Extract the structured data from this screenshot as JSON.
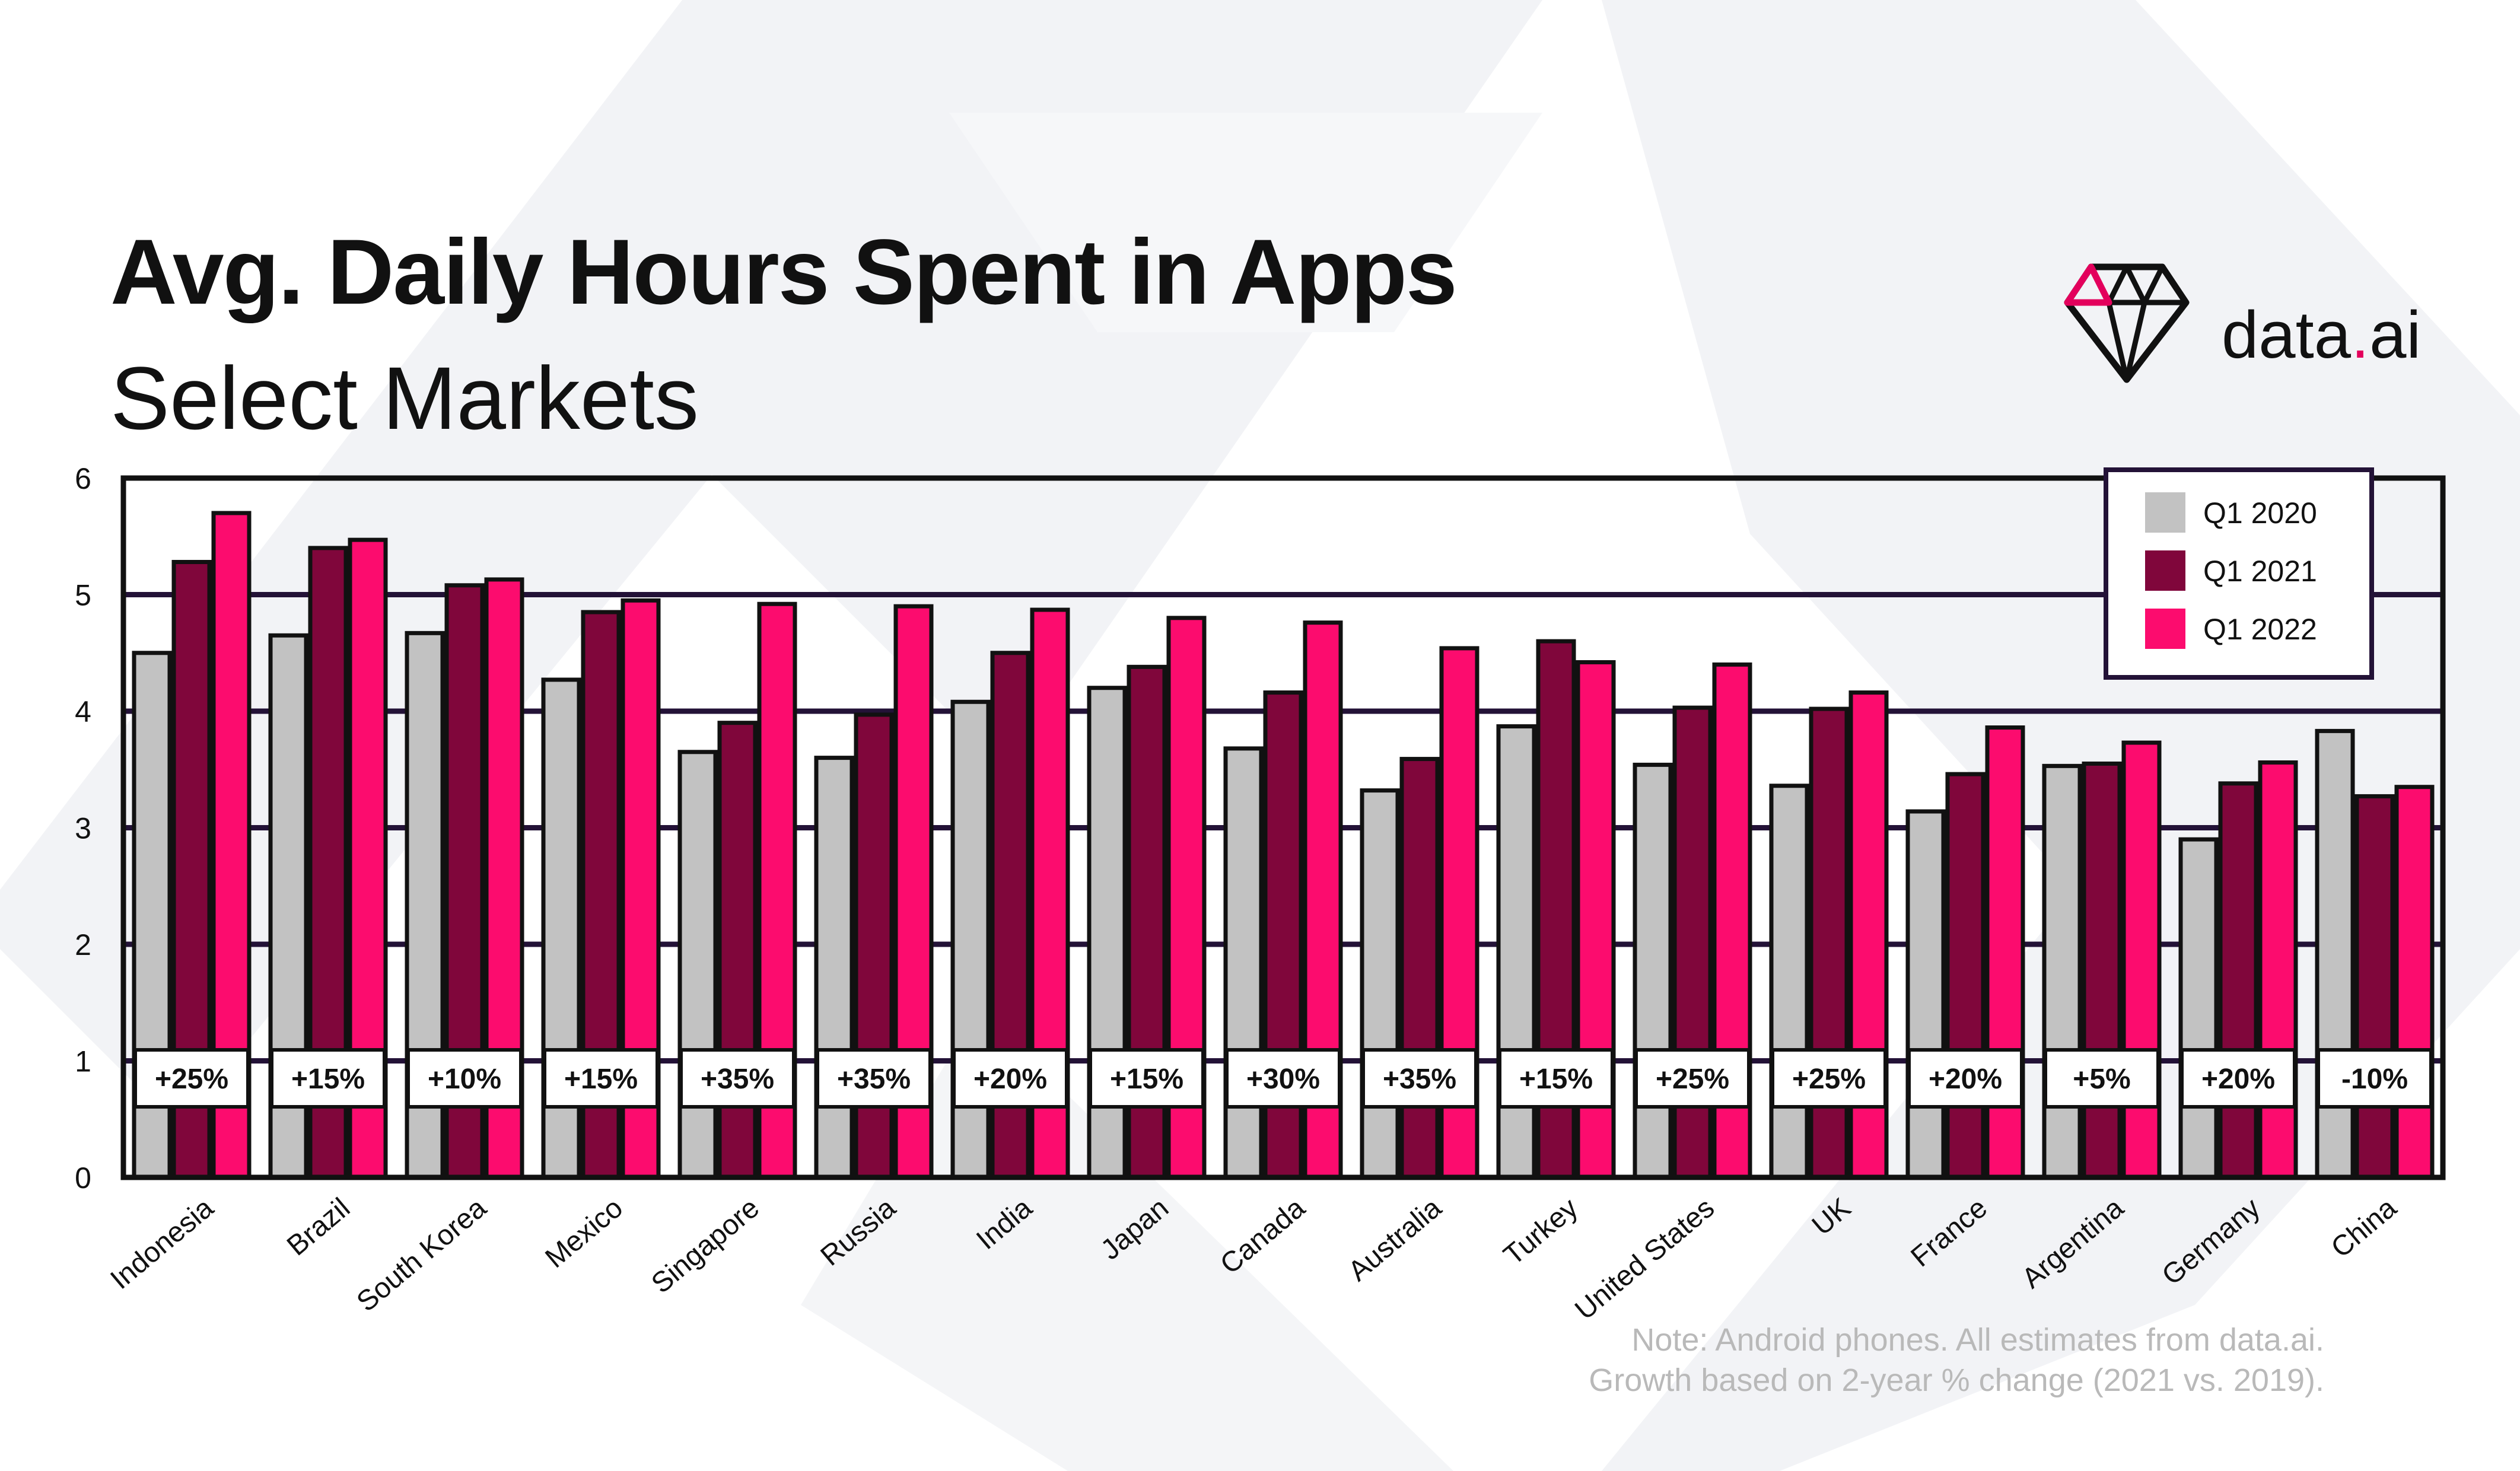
{
  "header": {
    "title": "Avg. Daily Hours Spent in Apps",
    "subtitle": "Select Markets"
  },
  "brand": {
    "name_part1": "data",
    "name_dot": ".",
    "name_part2": "ai",
    "icon": "diamond-icon",
    "accent": "#e3005c",
    "dark": "#111111"
  },
  "footer": {
    "note_line1": "Note: Android phones. All estimates from data.ai.",
    "note_line2": "Growth based on 2-year % change (2021 vs. 2019)."
  },
  "chart_data": {
    "type": "bar",
    "title": "Avg. Daily Hours Spent in Apps",
    "subtitle": "Select Markets",
    "xlabel": "",
    "ylabel": "",
    "ylim": [
      0,
      6
    ],
    "yticks": [
      0,
      1,
      2,
      3,
      4,
      5,
      6
    ],
    "grid": true,
    "legend_position": "top-right",
    "categories": [
      "Indonesia",
      "Brazil",
      "South Korea",
      "Mexico",
      "Singapore",
      "Russia",
      "India",
      "Japan",
      "Canada",
      "Australia",
      "Turkey",
      "United States",
      "UK",
      "France",
      "Argentina",
      "Germany",
      "China"
    ],
    "series": [
      {
        "name": "Q1 2020",
        "color": "#c2c2c2",
        "values": [
          4.5,
          4.65,
          4.67,
          4.27,
          3.65,
          3.6,
          4.08,
          4.2,
          3.68,
          3.32,
          3.87,
          3.54,
          3.36,
          3.14,
          3.53,
          2.9,
          3.83
        ]
      },
      {
        "name": "Q1 2021",
        "color": "#80063b",
        "values": [
          5.28,
          5.4,
          5.08,
          4.85,
          3.9,
          3.97,
          4.5,
          4.38,
          4.16,
          3.59,
          4.6,
          4.03,
          4.02,
          3.46,
          3.55,
          3.38,
          3.27
        ]
      },
      {
        "name": "Q1 2022",
        "color": "#fc0c6e",
        "values": [
          5.7,
          5.47,
          5.13,
          4.95,
          4.92,
          4.9,
          4.87,
          4.8,
          4.76,
          4.54,
          4.42,
          4.4,
          4.16,
          3.86,
          3.73,
          3.56,
          3.35
        ]
      }
    ],
    "growth_labels": [
      "+25%",
      "+15%",
      "+10%",
      "+15%",
      "+35%",
      "+35%",
      "+20%",
      "+15%",
      "+30%",
      "+35%",
      "+15%",
      "+25%",
      "+25%",
      "+20%",
      "+5%",
      "+20%",
      "-10%"
    ]
  }
}
